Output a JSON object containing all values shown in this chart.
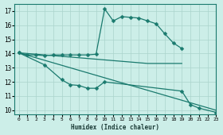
{
  "bg_color": "#cceee8",
  "line_color": "#1a7a6e",
  "grid_color": "#aad4cc",
  "xlabel": "Humidex (Indice chaleur)",
  "xlim": [
    -0.5,
    23
  ],
  "ylim": [
    9.7,
    17.5
  ],
  "yticks": [
    10,
    11,
    12,
    13,
    14,
    15,
    16,
    17
  ],
  "xticks": [
    0,
    1,
    2,
    3,
    4,
    5,
    6,
    7,
    8,
    9,
    10,
    11,
    12,
    13,
    14,
    15,
    16,
    17,
    18,
    19,
    20,
    21,
    22,
    23
  ],
  "line1_x": [
    0,
    1,
    2,
    3,
    4,
    5,
    6,
    7,
    8,
    9,
    10,
    11,
    12,
    13,
    14,
    15,
    16,
    17,
    18,
    19
  ],
  "line1_y": [
    14.05,
    13.9,
    13.9,
    13.85,
    13.9,
    13.9,
    13.9,
    13.9,
    13.9,
    13.95,
    17.15,
    16.3,
    16.6,
    16.55,
    16.5,
    16.3,
    16.1,
    15.4,
    14.75,
    14.35
  ],
  "line2_x": [
    0,
    10,
    11,
    12,
    13,
    14,
    15,
    16,
    17,
    18,
    19
  ],
  "line2_y": [
    14.05,
    13.55,
    13.5,
    13.45,
    13.4,
    13.35,
    13.3,
    13.3,
    13.3,
    13.3,
    13.3
  ],
  "line3_x": [
    0,
    3,
    5,
    6,
    7,
    8,
    9,
    10,
    19,
    20,
    21,
    23
  ],
  "line3_y": [
    14.05,
    13.2,
    12.15,
    11.8,
    11.75,
    11.55,
    11.55,
    12.0,
    11.35,
    10.4,
    10.15,
    9.85
  ],
  "line4_x": [
    0,
    23
  ],
  "line4_y": [
    14.05,
    10.0
  ],
  "marker": "D",
  "markersize": 2.5,
  "linewidth": 0.9
}
